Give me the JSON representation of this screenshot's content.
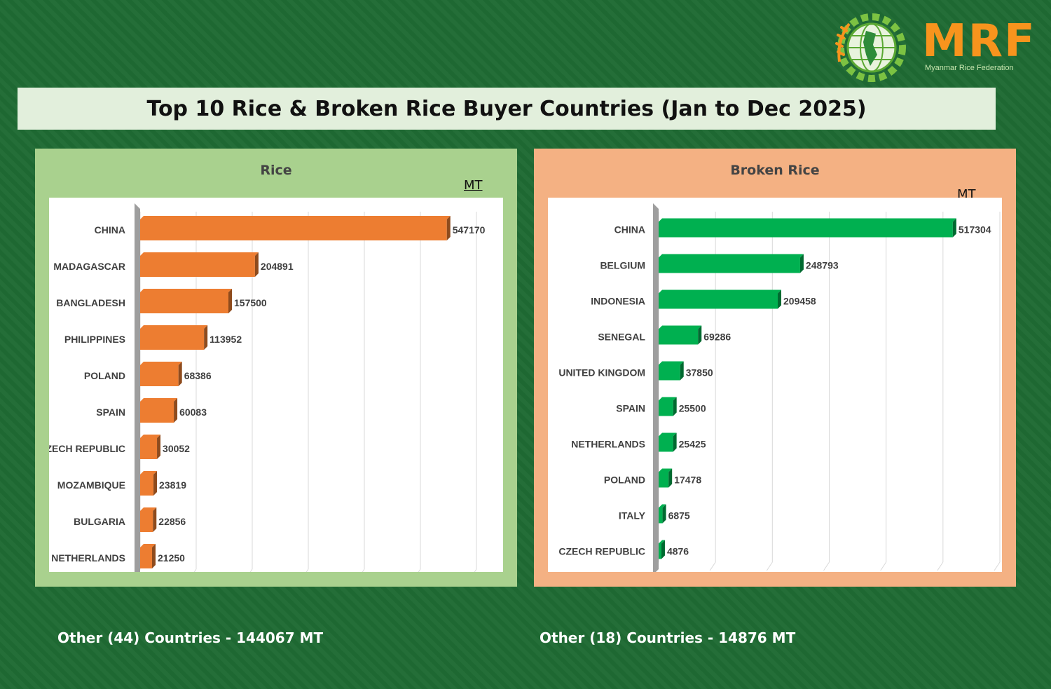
{
  "title": "Top 10 Rice & Broken Rice Buyer Countries (Jan to Dec 2025)",
  "logo": {
    "text": "MRF",
    "subtitle": "Myanmar Rice Federation"
  },
  "chart_data": [
    {
      "type": "bar",
      "orientation": "horizontal",
      "title": "Rice",
      "unit": "MT",
      "categories": [
        "CHINA",
        "MADAGASCAR",
        "BANGLADESH",
        "PHILIPPINES",
        "POLAND",
        "SPAIN",
        "CZECH REPUBLIC",
        "MOZAMBIQUE",
        "BULGARIA",
        "NETHERLANDS"
      ],
      "values": [
        547170,
        204891,
        157500,
        113952,
        68386,
        60083,
        30052,
        23819,
        22856,
        21250
      ],
      "xlim": [
        0,
        600000
      ],
      "grid": true,
      "color": "#ed7d31"
    },
    {
      "type": "bar",
      "orientation": "horizontal",
      "title": "Broken Rice",
      "unit": "MT",
      "categories": [
        "CHINA",
        "BELGIUM",
        "INDONESIA",
        "SENEGAL",
        "UNITED KINGDOM",
        "SPAIN",
        "NETHERLANDS",
        "POLAND",
        "ITALY",
        "CZECH REPUBLIC"
      ],
      "values": [
        517304,
        248793,
        209458,
        69286,
        37850,
        25500,
        25425,
        17478,
        6875,
        4876
      ],
      "xlim": [
        0,
        600000
      ],
      "grid": true,
      "color": "#00b050"
    }
  ],
  "footer": {
    "rice_other": "Other (44) Countries - 144067 MT",
    "broken_other": "Other (18) Countries - 14876 MT"
  }
}
